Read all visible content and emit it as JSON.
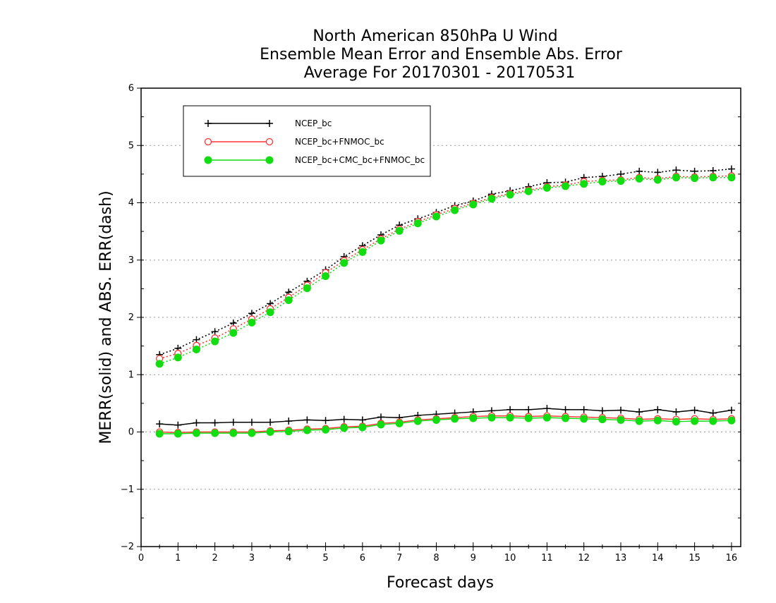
{
  "chart_data": {
    "type": "line",
    "title": [
      "North American 850hPa U Wind",
      "Ensemble Mean Error and Ensemble Abs. Error",
      "Average For 20170301 - 20170531"
    ],
    "xlabel": "Forecast days",
    "ylabel": "MERR(solid) and ABS. ERR(dash)",
    "xlim": [
      0,
      16.25
    ],
    "ylim": [
      -2,
      6
    ],
    "xticks": [
      0,
      1,
      2,
      3,
      4,
      5,
      6,
      7,
      8,
      9,
      10,
      11,
      12,
      13,
      14,
      15,
      16
    ],
    "yticks": [
      -2,
      -1,
      0,
      1,
      2,
      3,
      4,
      5,
      6
    ],
    "grid": true,
    "legend_position": "top-left",
    "x": [
      0.5,
      1,
      1.5,
      2,
      2.5,
      3,
      3.5,
      4,
      4.5,
      5,
      5.5,
      6,
      6.5,
      7,
      7.5,
      8,
      8.5,
      9,
      9.5,
      10,
      10.5,
      11,
      11.5,
      12,
      12.5,
      13,
      13.5,
      14,
      14.5,
      15,
      15.5,
      16
    ],
    "series": [
      {
        "name": "NCEP_bc",
        "color": "#000000",
        "marker": "plus",
        "merr": [
          0.14,
          0.12,
          0.16,
          0.16,
          0.17,
          0.17,
          0.17,
          0.19,
          0.21,
          0.2,
          0.22,
          0.21,
          0.26,
          0.25,
          0.29,
          0.31,
          0.33,
          0.35,
          0.37,
          0.39,
          0.39,
          0.41,
          0.39,
          0.39,
          0.37,
          0.38,
          0.35,
          0.39,
          0.35,
          0.38,
          0.33,
          0.38
        ],
        "abs_err": [
          1.35,
          1.46,
          1.61,
          1.75,
          1.9,
          2.07,
          2.24,
          2.44,
          2.63,
          2.83,
          3.06,
          3.25,
          3.44,
          3.61,
          3.72,
          3.83,
          3.95,
          4.03,
          4.15,
          4.21,
          4.28,
          4.35,
          4.36,
          4.44,
          4.46,
          4.5,
          4.55,
          4.53,
          4.57,
          4.55,
          4.56,
          4.59
        ]
      },
      {
        "name": "NCEP_bc+FNMOC_bc",
        "color": "#ff3333",
        "marker": "open-circle",
        "merr": [
          0.0,
          -0.01,
          0.0,
          0.0,
          0.0,
          0.0,
          0.02,
          0.03,
          0.05,
          0.06,
          0.09,
          0.1,
          0.15,
          0.17,
          0.21,
          0.23,
          0.25,
          0.27,
          0.28,
          0.28,
          0.27,
          0.28,
          0.27,
          0.26,
          0.25,
          0.24,
          0.22,
          0.23,
          0.22,
          0.23,
          0.22,
          0.23
        ],
        "abs_err": [
          1.28,
          1.37,
          1.51,
          1.64,
          1.8,
          1.97,
          2.15,
          2.35,
          2.56,
          2.78,
          2.99,
          3.18,
          3.37,
          3.54,
          3.67,
          3.79,
          3.9,
          3.99,
          4.09,
          4.16,
          4.22,
          4.28,
          4.31,
          4.37,
          4.39,
          4.4,
          4.44,
          4.42,
          4.46,
          4.45,
          4.46,
          4.47
        ]
      },
      {
        "name": "NCEP_bc+CMC_bc+FNMOC_bc",
        "color": "#11dd11",
        "marker": "filled-circle",
        "merr": [
          -0.03,
          -0.03,
          -0.02,
          -0.02,
          -0.02,
          -0.02,
          0.0,
          0.01,
          0.03,
          0.04,
          0.07,
          0.08,
          0.13,
          0.15,
          0.19,
          0.21,
          0.23,
          0.24,
          0.25,
          0.25,
          0.24,
          0.25,
          0.24,
          0.23,
          0.22,
          0.21,
          0.19,
          0.2,
          0.18,
          0.19,
          0.19,
          0.2
        ],
        "abs_err": [
          1.19,
          1.3,
          1.44,
          1.58,
          1.73,
          1.91,
          2.09,
          2.3,
          2.51,
          2.72,
          2.95,
          3.14,
          3.34,
          3.51,
          3.64,
          3.76,
          3.87,
          3.97,
          4.07,
          4.14,
          4.2,
          4.26,
          4.29,
          4.33,
          4.37,
          4.38,
          4.42,
          4.4,
          4.44,
          4.43,
          4.44,
          4.44
        ]
      }
    ]
  }
}
